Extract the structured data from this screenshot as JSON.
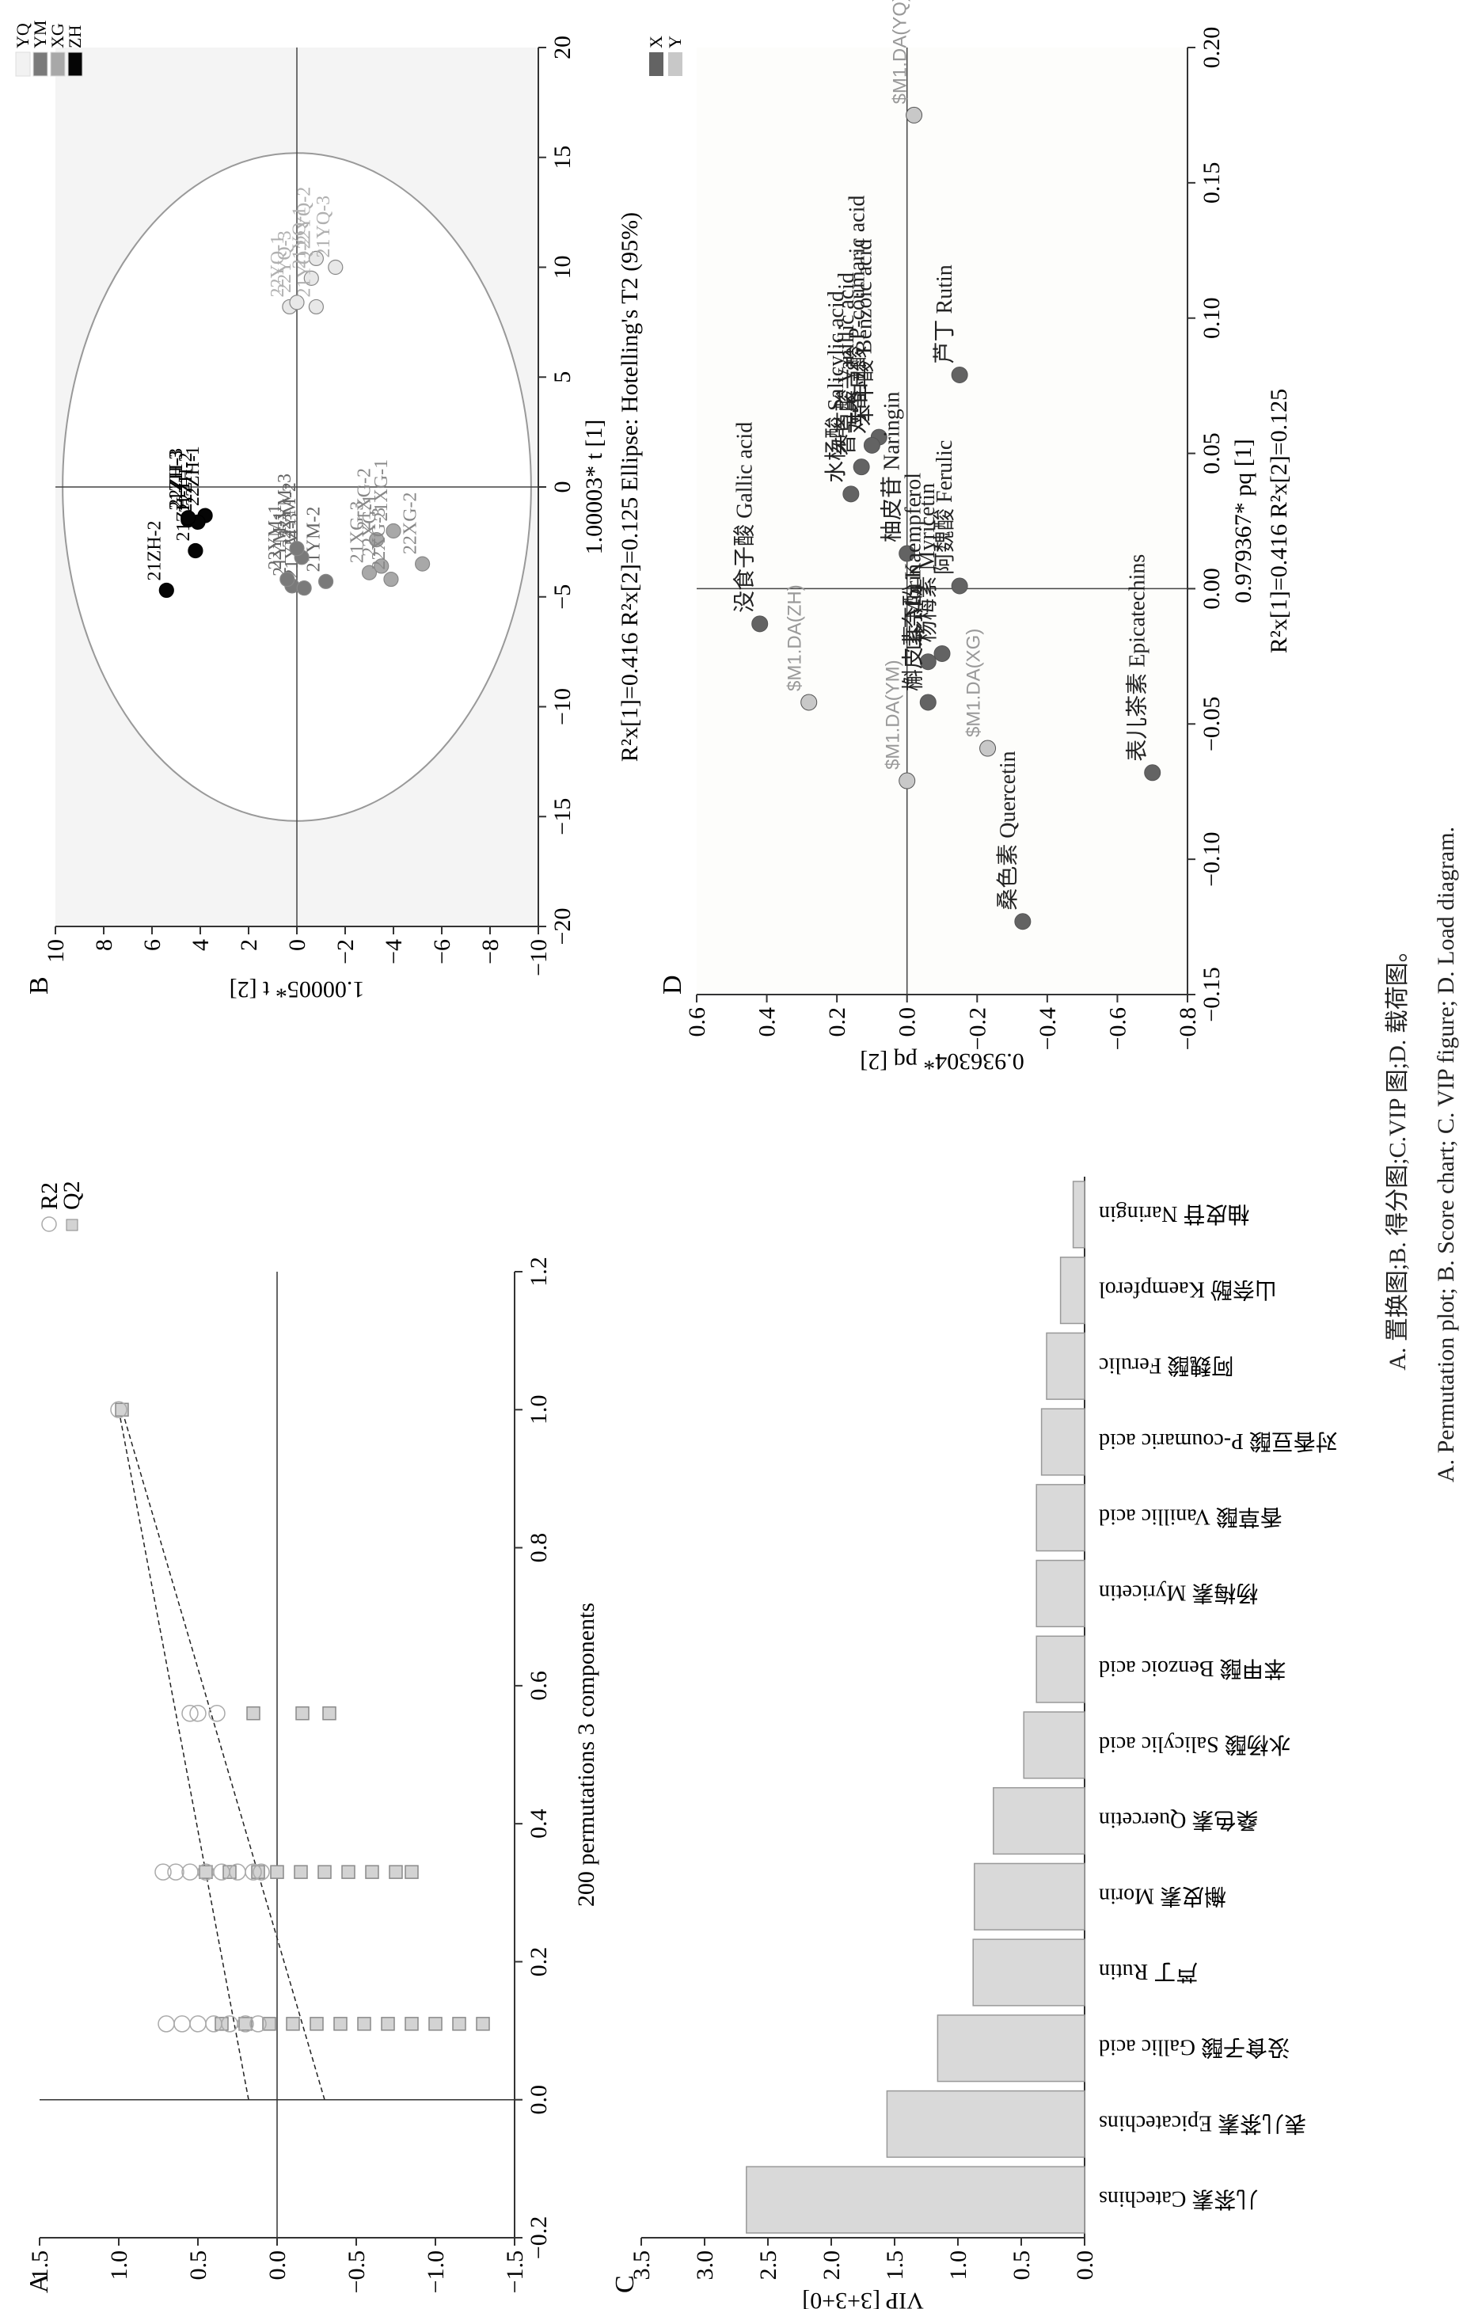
{
  "caption": {
    "zh": "A. 置换图;B. 得分图;C.VIP 图;D. 载荷图。",
    "en": "A. Permutation plot; B. Score chart; C. VIP figure; D. Load diagram."
  },
  "chart_data": [
    {
      "panel": "A",
      "type": "scatter",
      "title": "",
      "xlabel": "200 permutations 3 components",
      "ylabel": "",
      "xlim": [
        -0.2,
        1.2
      ],
      "ylim": [
        -1.5,
        1.5
      ],
      "xticks": [
        "−0.2",
        "0.0",
        "0.2",
        "0.4",
        "0.6",
        "0.8",
        "1.0",
        "1.2"
      ],
      "yticks": [
        "−1.5",
        "−1.0",
        "−0.5",
        "0.0",
        "0.5",
        "1.0",
        "1.5"
      ],
      "legend": [
        {
          "name": "R2",
          "marker": "open-circle"
        },
        {
          "name": "Q2",
          "marker": "filled-square"
        }
      ],
      "legend_position": "top-right",
      "series": [
        {
          "name": "R2",
          "points": [
            [
              1.0,
              1.0
            ],
            [
              0.56,
              0.55
            ],
            [
              0.56,
              0.5
            ],
            [
              0.56,
              0.38
            ],
            [
              0.33,
              0.72
            ],
            [
              0.33,
              0.64
            ],
            [
              0.33,
              0.55
            ],
            [
              0.33,
              0.45
            ],
            [
              0.33,
              0.35
            ],
            [
              0.33,
              0.25
            ],
            [
              0.33,
              0.15
            ],
            [
              0.33,
              0.1
            ],
            [
              0.11,
              0.7
            ],
            [
              0.11,
              0.6
            ],
            [
              0.11,
              0.5
            ],
            [
              0.11,
              0.4
            ],
            [
              0.11,
              0.3
            ],
            [
              0.11,
              0.2
            ],
            [
              0.11,
              0.12
            ]
          ]
        },
        {
          "name": "Q2",
          "points": [
            [
              1.0,
              0.98
            ],
            [
              0.56,
              0.15
            ],
            [
              0.56,
              -0.16
            ],
            [
              0.56,
              -0.33
            ],
            [
              0.33,
              0.45
            ],
            [
              0.33,
              0.3
            ],
            [
              0.33,
              0.12
            ],
            [
              0.33,
              0.0
            ],
            [
              0.33,
              -0.15
            ],
            [
              0.33,
              -0.3
            ],
            [
              0.33,
              -0.45
            ],
            [
              0.33,
              -0.6
            ],
            [
              0.33,
              -0.75
            ],
            [
              0.33,
              -0.85
            ],
            [
              0.11,
              0.35
            ],
            [
              0.11,
              0.2
            ],
            [
              0.11,
              0.05
            ],
            [
              0.11,
              -0.1
            ],
            [
              0.11,
              -0.25
            ],
            [
              0.11,
              -0.4
            ],
            [
              0.11,
              -0.55
            ],
            [
              0.11,
              -0.7
            ],
            [
              0.11,
              -0.85
            ],
            [
              0.11,
              -1.0
            ],
            [
              0.11,
              -1.15
            ],
            [
              0.11,
              -1.3
            ]
          ]
        }
      ],
      "regression_lines": [
        {
          "name": "R2",
          "intercept": 0.18,
          "slope_to": [
            1.0,
            1.0
          ]
        },
        {
          "name": "Q2",
          "intercept": -0.3,
          "slope_to": [
            1.0,
            0.98
          ]
        }
      ]
    },
    {
      "panel": "B",
      "type": "scatter",
      "title": "",
      "xlabel": "1.00003* t [1]",
      "xlabel_note": "Ellipse: Hotelling's T2 (95%)",
      "stats": "R²x[1]=0.416    R²x[2]=0.125",
      "ylabel": "1.00005* t [2]",
      "xlim": [
        -20,
        20
      ],
      "ylim": [
        -10,
        10
      ],
      "xticks": [
        "−20",
        "−15",
        "−10",
        "−5",
        "0",
        "5",
        "10",
        "15",
        "20"
      ],
      "yticks": [
        "−10",
        "−8",
        "−6",
        "−4",
        "−2",
        "0",
        "2",
        "4",
        "6",
        "8",
        "10"
      ],
      "ellipse": {
        "rx": 15.2,
        "ry": 9.7
      },
      "legend": [
        {
          "name": "YQ",
          "color": "#f2f2f2"
        },
        {
          "name": "YM",
          "color": "#7a7a7a"
        },
        {
          "name": "XG",
          "color": "#a8a8a8"
        },
        {
          "name": "ZH",
          "color": "#050505"
        }
      ],
      "legend_position": "top-left",
      "points": [
        {
          "label": "22YQ-1",
          "group": "YQ",
          "x": 8.2,
          "y": 0.3
        },
        {
          "label": "22YQ-2",
          "group": "YQ",
          "x": 10.4,
          "y": -0.8
        },
        {
          "label": "22YQ-3",
          "group": "YQ",
          "x": 8.4,
          "y": 0.0
        },
        {
          "label": "21YQ-1",
          "group": "YQ",
          "x": 9.5,
          "y": -0.6
        },
        {
          "label": "21YQ-2",
          "group": "YQ",
          "x": 8.2,
          "y": -0.8
        },
        {
          "label": "21YQ-3",
          "group": "YQ",
          "x": 10.0,
          "y": -1.6
        },
        {
          "label": "21ZH-1",
          "group": "ZH",
          "x": -2.9,
          "y": 4.2
        },
        {
          "label": "21ZH-2",
          "group": "ZH",
          "x": -4.7,
          "y": 5.4
        },
        {
          "label": "21ZH-3",
          "group": "ZH",
          "x": -1.5,
          "y": 4.5
        },
        {
          "label": "22ZH-1",
          "group": "ZH",
          "x": -1.3,
          "y": 3.8
        },
        {
          "label": "22ZH-2",
          "group": "ZH",
          "x": -1.6,
          "y": 4.1
        },
        {
          "label": "22ZH-3",
          "group": "ZH",
          "x": -1.4,
          "y": 4.5
        },
        {
          "label": "21YM-1",
          "group": "YM",
          "x": -4.5,
          "y": 0.2
        },
        {
          "label": "21YM-2",
          "group": "YM",
          "x": -4.3,
          "y": -1.2
        },
        {
          "label": "21YM-3",
          "group": "YM",
          "x": -4.6,
          "y": -0.3
        },
        {
          "label": "22YM-1",
          "group": "YM",
          "x": -4.2,
          "y": 0.4
        },
        {
          "label": "22YM-2",
          "group": "YM",
          "x": -3.2,
          "y": -0.2
        },
        {
          "label": "22YM-3",
          "group": "YM",
          "x": -2.8,
          "y": 0.0
        },
        {
          "label": "21XG-1",
          "group": "XG",
          "x": -2.0,
          "y": -4.0
        },
        {
          "label": "21XG-2",
          "group": "XG",
          "x": -2.4,
          "y": -3.3
        },
        {
          "label": "21XG-3",
          "group": "XG",
          "x": -3.9,
          "y": -3.0
        },
        {
          "label": "22XG-1",
          "group": "XG",
          "x": -3.6,
          "y": -3.5
        },
        {
          "label": "22XG-2",
          "group": "XG",
          "x": -3.5,
          "y": -5.2
        },
        {
          "label": "22XG-3",
          "group": "XG",
          "x": -4.2,
          "y": -3.9
        }
      ]
    },
    {
      "panel": "C",
      "type": "bar",
      "title": "",
      "xlabel": "",
      "ylabel": "VIP [3+3+0]",
      "ylim": [
        0,
        3.5
      ],
      "yticks": [
        "0.0",
        "0.5",
        "1.0",
        "1.5",
        "2.0",
        "2.5",
        "3.0",
        "3.5"
      ],
      "categories": [
        "儿茶素 Catechins",
        "表儿茶素 Epicatechins",
        "没食子酸 Gallic acid",
        "芦丁 Rutin",
        "槲皮素 Morin",
        "桑色素 Quercetin",
        "水杨酸 Salicylic acid",
        "苯甲酸 Benzoic acid",
        "杨梅素 Myricetin",
        "香草酸 Vanillic acid",
        "对香豆酸 P-coumaric acid",
        "阿魏酸 Ferulic",
        "山奈酚 Kaempferol",
        "柚皮苷 Naringin"
      ],
      "values": [
        2.67,
        1.56,
        1.16,
        0.88,
        0.87,
        0.72,
        0.48,
        0.38,
        0.38,
        0.38,
        0.34,
        0.3,
        0.19,
        0.09
      ],
      "bar_color": "#d9d9d9"
    },
    {
      "panel": "D",
      "type": "scatter",
      "title": "",
      "xlabel": "0.979367* pq [1]",
      "stats": "R²x[1]=0.416    R²x[2]=0.125",
      "ylabel": "0.936304* pq [2]",
      "xlim": [
        -0.15,
        0.2
      ],
      "ylim": [
        -0.8,
        0.6
      ],
      "xticks": [
        "−0.15",
        "−0.10",
        "−0.05",
        "0.00",
        "0.05",
        "0.10",
        "0.15",
        "0.20"
      ],
      "yticks": [
        "−0.8",
        "−0.6",
        "−0.4",
        "−0.2",
        "0.0",
        "0.2",
        "0.4",
        "0.6"
      ],
      "legend": [
        {
          "name": "X",
          "color": "#636363"
        },
        {
          "name": "Y",
          "color": "#c8c8c8"
        }
      ],
      "legend_position": "top-right",
      "points": [
        {
          "label": "没食子酸 Gallic acid",
          "group": "X",
          "x": -0.013,
          "y": 0.42
        },
        {
          "label": "水杨酸 Salicylic acid",
          "group": "X",
          "x": 0.035,
          "y": 0.16
        },
        {
          "label": "香草酸 Vanillic acid",
          "group": "X",
          "x": 0.045,
          "y": 0.13
        },
        {
          "label": "苯甲酸 Benzoic acid",
          "group": "X",
          "x": 0.056,
          "y": 0.08
        },
        {
          "label": "对香豆酸 P-coumaric acid",
          "group": "X",
          "x": 0.053,
          "y": 0.1
        },
        {
          "label": "柚皮苷 Naringin",
          "group": "X",
          "x": 0.013,
          "y": 0.0
        },
        {
          "label": "山奈酚 Kaempferol",
          "group": "X",
          "x": -0.027,
          "y": -0.06
        },
        {
          "label": "阿魏酸 Ferulic",
          "group": "X",
          "x": 0.001,
          "y": -0.15
        },
        {
          "label": "芦丁 Rutin",
          "group": "X",
          "x": 0.079,
          "y": -0.15
        },
        {
          "label": "杨梅素 Myricetin",
          "group": "X",
          "x": -0.024,
          "y": -0.1
        },
        {
          "label": "槲皮素 Morin",
          "group": "X",
          "x": -0.042,
          "y": -0.06
        },
        {
          "label": "桑色素 Quercetin",
          "group": "X",
          "x": -0.123,
          "y": -0.33
        },
        {
          "label": "表儿茶素 Epicatechins",
          "group": "X",
          "x": -0.068,
          "y": -0.7
        },
        {
          "label": "$M1.DA(ZH)",
          "group": "Y",
          "x": -0.042,
          "y": 0.28
        },
        {
          "label": "$M1.DA(YQ)",
          "group": "Y",
          "x": 0.175,
          "y": -0.02
        },
        {
          "label": "$M1.DA(YM)",
          "group": "Y",
          "x": -0.071,
          "y": 0.0
        },
        {
          "label": "$M1.DA(XG)",
          "group": "Y",
          "x": -0.059,
          "y": -0.23
        }
      ]
    }
  ]
}
